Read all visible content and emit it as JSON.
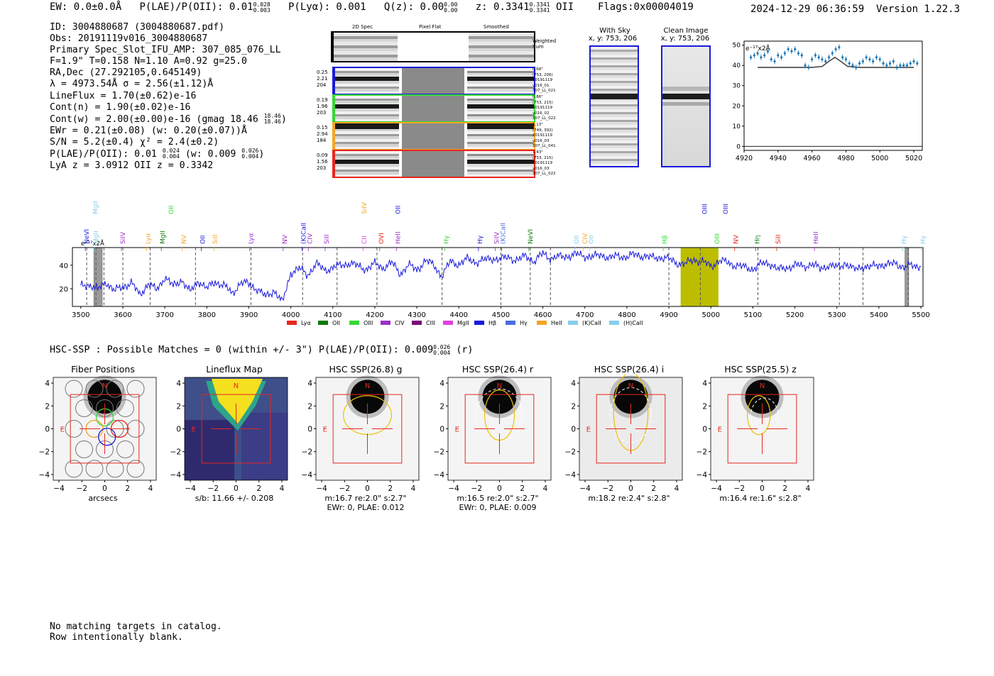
{
  "header": {
    "ew": "EW: 0.0±0.0Å",
    "plae_label": "P(LAE)/P(OII): 0.01",
    "plae_sup": "0.028",
    "plae_sub": "0.003",
    "plya": "P(Lyα): 0.001",
    "qz_label": "Q(z): 0.00",
    "qz_sup": "0.00",
    "qz_sub": "0.00",
    "z_label": "z: 0.3341",
    "z_sup": "0.3341",
    "z_sub": "0.3341",
    "z_line": "OII",
    "flags": "Flags:0x00004019",
    "timestamp": "2024-12-29 06:36:59",
    "version": "Version 1.22.3"
  },
  "info": {
    "id": "ID: 3004880687 (3004880687.pdf)",
    "obs": "Obs: 20191119v016_3004880687",
    "primary": "Primary Spec_Slot_IFU_AMP: 307_085_076_LL",
    "params": "F=1.9\"  T=0.158  N=1.10  A=0.92  g=25.0",
    "radec": "RA,Dec (27.292105,0.645149)",
    "lambda": "λ = 4973.54Å   σ = 2.56(±1.12)Å",
    "lineflux": "LineFlux = 1.70(±0.62)e-16",
    "contn": "Cont(n) = 1.90(±0.02)e-16",
    "contw": "Cont(w) = 2.00(±0.00)e-16 (gmag 18.46",
    "contw_sup": "18.46",
    "contw_sub": "18.46",
    "ewr": "EWr = 0.21(±0.08) (w: 0.20(±0.07))Å",
    "sn": "S/N = 5.2(±0.4)  χ² = 2.4(±0.2)",
    "plae": "P(LAE)/P(OII): 0.01",
    "plae_sup": "0.024",
    "plae_sub": "0.004",
    "plae_w": "(w: 0.009",
    "plae_w_sup": "0.026",
    "plae_w_sub": "0.004",
    "lyaz": "LyA z = 3.0912  OII z = 0.3342"
  },
  "cutouts": {
    "col_2d": "2D Spec",
    "col_flat": "Pixel Flat",
    "col_smooth": "Smoothed",
    "weighted": "Weighted Sum",
    "rows": [
      {
        "left": [
          "0.25",
          "2.21",
          "204"
        ],
        "right": [
          "0.68\"",
          "(753, 206)",
          "20191119",
          "v016_01",
          "307_LL_021"
        ],
        "color": "#1a1adc"
      },
      {
        "left": [
          "0.19",
          "1.96",
          "203"
        ],
        "right": [
          "0.86\"",
          "(753, 215)",
          "20191119",
          "v016_02",
          "307_LL_022"
        ],
        "color": "#34d934"
      },
      {
        "left": [
          "0.15",
          "2.94",
          "184"
        ],
        "right": [
          "1.13\"",
          "(749, 392)",
          "20191119",
          "v016_03",
          "307_LL_041"
        ],
        "color": "#f5a623"
      },
      {
        "left": [
          "0.09",
          "1.56",
          "203"
        ],
        "right": [
          "1.43\"",
          "(753, 215)",
          "20191119",
          "v016_03",
          "307_LL_022"
        ],
        "color": "#e8261e"
      }
    ]
  },
  "sky": {
    "with_sky": "With Sky",
    "with_sky_xy": "x, y: 753, 206",
    "clean": "Clean Image",
    "clean_xy": "x, y: 753, 206"
  },
  "zoom": {
    "unit": "e⁻¹⁷x2Å",
    "yticks": [
      "50",
      "40",
      "30",
      "20",
      "10",
      "0"
    ],
    "xticks": [
      "4920",
      "4940",
      "4960",
      "4980",
      "5000",
      "5020"
    ]
  },
  "spectrum": {
    "unit": "e⁻¹⁷x2Å",
    "yticks": [
      "40",
      "20"
    ],
    "xticks": [
      "3500",
      "3600",
      "3700",
      "3800",
      "3900",
      "4000",
      "4100",
      "4200",
      "4300",
      "4400",
      "4500",
      "4600",
      "4700",
      "4800",
      "4900",
      "5000",
      "5100",
      "5200",
      "5300",
      "5400",
      "5500"
    ],
    "lines_top": [
      {
        "label": "MgII",
        "color": "#87ceeb"
      },
      {
        "label": "OII",
        "color": "#34d934"
      },
      {
        "label": "SiIV",
        "color": "#f5a623"
      },
      {
        "label": "OII",
        "color": "#1a1adc"
      },
      {
        "label": "OIII",
        "color": "#1a1adc"
      },
      {
        "label": "OIII",
        "color": "#1a1adc"
      }
    ],
    "lines": [
      {
        "label": "NeVI",
        "color": "#1a1adc"
      },
      {
        "label": "MgII",
        "color": "#87ceeb"
      },
      {
        "label": "SiIV",
        "color": "#9b30c8"
      },
      {
        "label": "Lyα",
        "color": "#f5a623"
      },
      {
        "label": "MgII",
        "color": "#0a7a0a"
      },
      {
        "label": "NV",
        "color": "#f5a623"
      },
      {
        "label": "OII",
        "color": "#1a1adc"
      },
      {
        "label": "SiII",
        "color": "#f5a623"
      },
      {
        "label": "Lyα",
        "color": "#9b30c8"
      },
      {
        "label": "NV",
        "color": "#9b30c8"
      },
      {
        "label": "(K)CaII",
        "color": "#1a1adc"
      },
      {
        "label": "CIV",
        "color": "#9b30c8"
      },
      {
        "label": "SiII",
        "color": "#9b30c8"
      },
      {
        "label": "CII",
        "color": "#e040e0"
      },
      {
        "label": "OVI",
        "color": "#e8261e"
      },
      {
        "label": "HeII",
        "color": "#9b30c8"
      },
      {
        "label": "Hγ",
        "color": "#34d934"
      },
      {
        "label": "Hγ",
        "color": "#1a1adc"
      },
      {
        "label": "SiIV",
        "color": "#9b30c8"
      },
      {
        "label": "(K)CaII",
        "color": "#4a6ee0"
      },
      {
        "label": "NeVI",
        "color": "#0a7a0a"
      },
      {
        "label": "OII",
        "color": "#87ceeb"
      },
      {
        "label": "CIV",
        "color": "#f5a623"
      },
      {
        "label": "OII",
        "color": "#87ceeb"
      },
      {
        "label": "Hβ",
        "color": "#34d934"
      },
      {
        "label": "OIII",
        "color": "#34d934"
      },
      {
        "label": "NV",
        "color": "#e8261e"
      },
      {
        "label": "Hη",
        "color": "#0a7a0a"
      },
      {
        "label": "SiII",
        "color": "#e8261e"
      },
      {
        "label": "HeII",
        "color": "#9b30c8"
      },
      {
        "label": "Hγ",
        "color": "#87ceeb"
      },
      {
        "label": "Hγ",
        "color": "#87ceeb"
      }
    ],
    "legend": [
      {
        "label": "Lyα",
        "color": "#e8261e"
      },
      {
        "label": "OII",
        "color": "#0a7a0a"
      },
      {
        "label": "OIII",
        "color": "#34d934"
      },
      {
        "label": "CIV",
        "color": "#9b30c8"
      },
      {
        "label": "CIII",
        "color": "#7a0a7a"
      },
      {
        "label": "MgII",
        "color": "#e040e0"
      },
      {
        "label": "Hβ",
        "color": "#1a1adc"
      },
      {
        "label": "Hγ",
        "color": "#4a6ee0"
      },
      {
        "label": "HeII",
        "color": "#f5a623"
      },
      {
        "label": "(K)CaII",
        "color": "#87ceeb"
      },
      {
        "label": "(H)CaII",
        "color": "#87ceeb"
      }
    ]
  },
  "hsc": {
    "summary": "HSC-SSP : Possible Matches = 0 (within +/- 3\")  P(LAE)/P(OII): 0.009",
    "summary_sup": "0.026",
    "summary_sub": "0.004",
    "summary_band": "(r)",
    "panels": [
      {
        "title": "Fiber Positions",
        "cap1": "arcsecs",
        "cap2": ""
      },
      {
        "title": "Lineflux Map",
        "cap1": "s/b: 11.66 +/- 0.208",
        "cap2": ""
      },
      {
        "title": "HSC SSP(26.8) g",
        "cap1": "m:16.7  re:2.0\"  s:2.7\"",
        "cap2": "EWr: 0, PLAE: 0.012"
      },
      {
        "title": "HSC SSP(26.4) r",
        "cap1": "m:16.5  re:2.0\"  s:2.7\"",
        "cap2": "EWr: 0, PLAE: 0.009"
      },
      {
        "title": "HSC SSP(26.4) i",
        "cap1": "m:18.2  re:2.4\"  s:2.8\"",
        "cap2": ""
      },
      {
        "title": "HSC SSP(25.5) z",
        "cap1": "m:16.4  re:1.6\"  s:2.8\"",
        "cap2": ""
      }
    ],
    "yticks": [
      "4",
      "2",
      "0",
      "−2",
      "−4"
    ],
    "xticks": [
      "−4",
      "−2",
      "0",
      "2",
      "4"
    ],
    "north": "N",
    "east": "E"
  },
  "catalog": {
    "line1": "No matching targets in catalog.",
    "line2": "Row intentionally blank."
  },
  "chart_data": [
    {
      "type": "line",
      "title": "",
      "xlabel": "",
      "ylabel": "e⁻¹⁷x2Å",
      "xlim": [
        3480,
        5505
      ],
      "ylim": [
        5,
        55
      ],
      "series": [
        {
          "name": "spectrum",
          "x": [
            3500,
            3520,
            3540,
            3560,
            3580,
            3600,
            3620,
            3640,
            3660,
            3680,
            3700,
            3720,
            3740,
            3760,
            3780,
            3800,
            3820,
            3840,
            3860,
            3880,
            3900,
            3920,
            3940,
            3960,
            3980,
            4000,
            4020,
            4040,
            4060,
            4080,
            4100,
            4120,
            4140,
            4160,
            4180,
            4200,
            4220,
            4240,
            4260,
            4280,
            4300,
            4320,
            4340,
            4360,
            4380,
            4400,
            4420,
            4440,
            4460,
            4480,
            4500,
            4520,
            4540,
            4560,
            4580,
            4600,
            4620,
            4640,
            4660,
            4680,
            4700,
            4720,
            4740,
            4760,
            4780,
            4800,
            4820,
            4840,
            4860,
            4880,
            4900,
            4920,
            4940,
            4960,
            4980,
            5000,
            5020,
            5040,
            5060,
            5080,
            5100,
            5120,
            5140,
            5160,
            5180,
            5200,
            5220,
            5240,
            5260,
            5280,
            5300,
            5320,
            5340,
            5360,
            5380,
            5400,
            5420,
            5440,
            5460,
            5480,
            5500
          ],
          "values": [
            22,
            24,
            19,
            26,
            18,
            22,
            25,
            15,
            24,
            19,
            30,
            22,
            28,
            17,
            27,
            20,
            26,
            23,
            16,
            25,
            24,
            20,
            13,
            19,
            8,
            34,
            37,
            32,
            41,
            36,
            38,
            40,
            42,
            39,
            37,
            41,
            38,
            42,
            33,
            40,
            36,
            44,
            40,
            31,
            43,
            41,
            45,
            43,
            44,
            46,
            45,
            47,
            44,
            48,
            43,
            50,
            46,
            47,
            48,
            49,
            48,
            47,
            49,
            46,
            48,
            47,
            49,
            48,
            46,
            47,
            45,
            42,
            41,
            45,
            43,
            39,
            44,
            42,
            40,
            38,
            37,
            41,
            42,
            36,
            38,
            40,
            39,
            41,
            37,
            40,
            38,
            42,
            36,
            39,
            38,
            41,
            40,
            42,
            38,
            40,
            39
          ]
        }
      ],
      "highlight_band": [
        4928,
        5018
      ],
      "gray_bands": [
        [
          3531,
          3551
        ],
        [
          5462,
          5471
        ]
      ]
    },
    {
      "type": "scatter",
      "title": "",
      "xlabel": "",
      "ylabel": "e⁻¹⁷x2Å",
      "xlim": [
        4920,
        5025
      ],
      "ylim": [
        -2,
        52
      ],
      "series": [
        {
          "name": "data",
          "x": [
            4924,
            4926,
            4928,
            4930,
            4932,
            4934,
            4936,
            4938,
            4940,
            4942,
            4944,
            4946,
            4948,
            4950,
            4952,
            4954,
            4956,
            4958,
            4960,
            4962,
            4964,
            4966,
            4968,
            4970,
            4972,
            4974,
            4976,
            4978,
            4980,
            4982,
            4984,
            4986,
            4988,
            4990,
            4992,
            4994,
            4996,
            4998,
            5000,
            5002,
            5004,
            5006,
            5008,
            5010,
            5012,
            5014,
            5016,
            5018,
            5020,
            5022
          ],
          "values": [
            44,
            45,
            46,
            44,
            45,
            47,
            43,
            42,
            45,
            44,
            46,
            48,
            47,
            48,
            46,
            45,
            40,
            39,
            43,
            45,
            44,
            43,
            42,
            44,
            46,
            48,
            49,
            44,
            43,
            41,
            40,
            39,
            41,
            42,
            44,
            43,
            42,
            44,
            43,
            41,
            40,
            41,
            42,
            39,
            40,
            40,
            40,
            41,
            42,
            41
          ]
        },
        {
          "name": "fit",
          "x": [
            4928,
            4960,
            4966,
            4970,
            4973.5,
            4977,
            4981,
            4988,
            5020
          ],
          "values": [
            39,
            39,
            39.5,
            42,
            44,
            42,
            39.5,
            39,
            39
          ]
        }
      ]
    }
  ]
}
